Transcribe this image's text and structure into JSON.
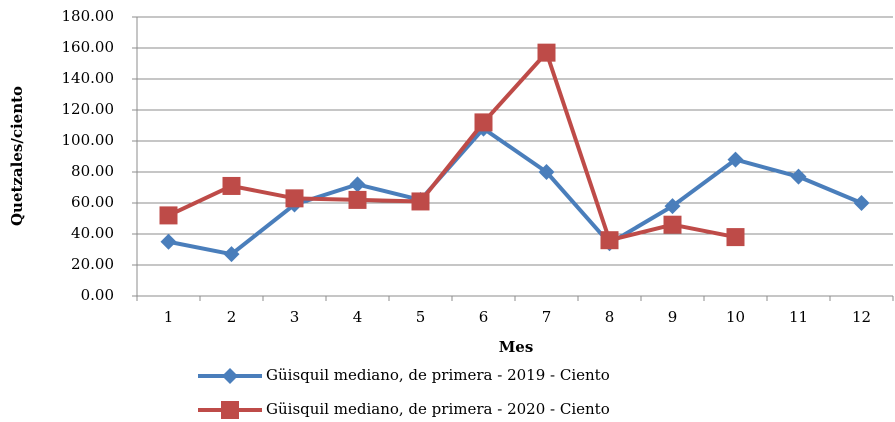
{
  "chart_data": {
    "type": "line",
    "y_label": "Quetzales/ciento",
    "x_label": "Mes",
    "categories": [
      "1",
      "2",
      "3",
      "4",
      "5",
      "6",
      "7",
      "8",
      "9",
      "10",
      "11",
      "12"
    ],
    "series": [
      {
        "name": "Güisquil mediano, de primera - 2019 - Ciento",
        "color": "#4a7ebb",
        "marker": "diamond",
        "values": [
          35,
          27,
          59,
          72,
          62,
          108,
          80,
          34,
          58,
          88,
          77,
          60
        ]
      },
      {
        "name": "Güisquil mediano, de primera - 2020 - Ciento",
        "color": "#be4b48",
        "marker": "square",
        "values": [
          52,
          71,
          63,
          62,
          61,
          112,
          157,
          36,
          46,
          38,
          null,
          null
        ]
      }
    ],
    "ylim": [
      0,
      180
    ],
    "yticks": [
      {
        "value": 0,
        "label": "0.00"
      },
      {
        "value": 20,
        "label": "20.00"
      },
      {
        "value": 40,
        "label": "40.00"
      },
      {
        "value": 60,
        "label": "60.00"
      },
      {
        "value": 80,
        "label": "80.00"
      },
      {
        "value": 100,
        "label": "100.00"
      },
      {
        "value": 120,
        "label": "120.00"
      },
      {
        "value": 140,
        "label": "140.00"
      },
      {
        "value": 160,
        "label": "160.00"
      },
      {
        "value": 180,
        "label": "180.00"
      }
    ],
    "grid": true,
    "legend": "bottom"
  }
}
